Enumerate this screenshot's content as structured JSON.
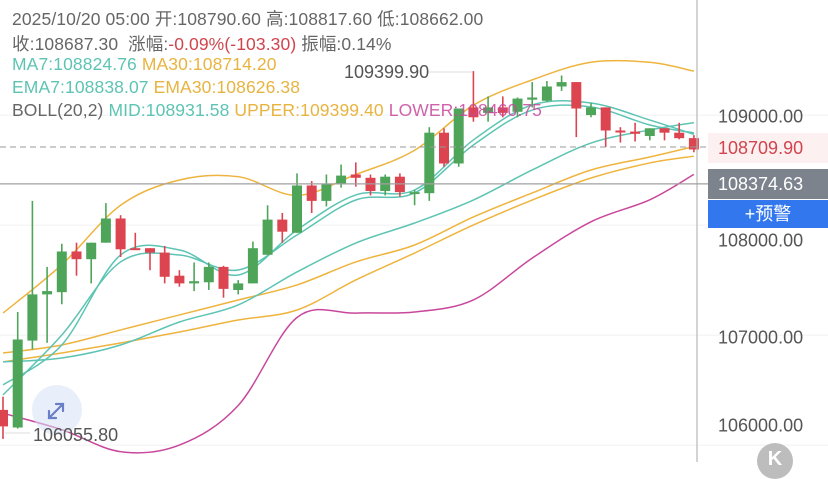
{
  "header": {
    "datetime": "2025/10/20 05:00",
    "open_label": "开:",
    "open": "108790.60",
    "high_label": "高:",
    "high": "108817.60",
    "low_label": "低:",
    "low": "108662.00",
    "close_label": "收:",
    "close": "108687.30",
    "change_label": "涨幅:",
    "change": "-0.09%(-103.30)",
    "amplitude_label": "振幅:",
    "amplitude": "0.14%",
    "ma7": "MA7:108824.76",
    "ma30": "MA30:108714.20",
    "ema7": "EMA7:108838.07",
    "ema30": "EMA30:108626.38",
    "boll": "BOLL(20,2)",
    "mid": "MID:108931.58",
    "upper": "UPPER:109399.40",
    "lower": "LOWER:108460.75"
  },
  "axis": {
    "labels": [
      "109000.00",
      "108000.00",
      "107000.00",
      "106000.00"
    ],
    "current_price": "108709.90",
    "crosshair_price": "108374.63",
    "alert_button": "+预警"
  },
  "extremes": {
    "max": "109399.90",
    "min": "106055.80"
  },
  "icons": {
    "expand": "expand-arrows-icon",
    "kline": "k-icon",
    "k_letter": "K"
  },
  "colors": {
    "up": "#4ea55a",
    "down": "#dc4450",
    "ma7": "#5dc4b4",
    "ema7": "#5dc4b4",
    "mid": "#5dc4b4",
    "ma30": "#eeb43e",
    "ema30": "#eeb43e",
    "upper": "#eeb43e",
    "lower": "#c8479c",
    "text": "#666666",
    "negative": "#d0454d",
    "alert": "#3377ee",
    "crosshair_tag": "#7c838d"
  },
  "chart_data": {
    "type": "candlestick",
    "ylim": [
      105900,
      109750
    ],
    "yticks": [
      109000,
      108000,
      107000,
      106000
    ],
    "candles_ohlc": [
      [
        106320,
        106440,
        106056,
        106170
      ],
      [
        106160,
        107210,
        106150,
        106960
      ],
      [
        106950,
        108220,
        106870,
        107370
      ],
      [
        107370,
        107620,
        106930,
        107400
      ],
      [
        107390,
        107830,
        107280,
        107760
      ],
      [
        107760,
        107840,
        107540,
        107690
      ],
      [
        107690,
        107840,
        107470,
        107840
      ],
      [
        107840,
        108200,
        107840,
        108060
      ],
      [
        108060,
        108090,
        107710,
        107780
      ],
      [
        107790,
        107930,
        107780,
        107780
      ],
      [
        107790,
        107790,
        107590,
        107750
      ],
      [
        107750,
        107810,
        107470,
        107530
      ],
      [
        107540,
        107590,
        107440,
        107470
      ],
      [
        107470,
        107660,
        107400,
        107490
      ],
      [
        107480,
        107660,
        107410,
        107620
      ],
      [
        107620,
        107630,
        107340,
        107420
      ],
      [
        107410,
        107500,
        107370,
        107470
      ],
      [
        107470,
        107850,
        107470,
        107790
      ],
      [
        107730,
        108180,
        107730,
        108050
      ],
      [
        108050,
        108110,
        107840,
        107940
      ],
      [
        107930,
        108470,
        107930,
        108360
      ],
      [
        108360,
        108400,
        108110,
        108220
      ],
      [
        108220,
        108460,
        108170,
        108370
      ],
      [
        108370,
        108550,
        108340,
        108450
      ],
      [
        108460,
        108570,
        108350,
        108430
      ],
      [
        108430,
        108460,
        108270,
        108310
      ],
      [
        108310,
        108460,
        108270,
        108440
      ],
      [
        108440,
        108470,
        108260,
        108300
      ],
      [
        108290,
        108320,
        108180,
        108300
      ],
      [
        108290,
        108890,
        108220,
        108840
      ],
      [
        108840,
        108880,
        108530,
        108560
      ],
      [
        108560,
        109060,
        108530,
        109060
      ],
      [
        109070,
        109399.9,
        108940,
        108980
      ],
      [
        109020,
        109170,
        108940,
        109070
      ],
      [
        109070,
        109170,
        108980,
        109020
      ],
      [
        109030,
        109160,
        108980,
        109150
      ],
      [
        109140,
        109300,
        109070,
        109160
      ],
      [
        109130,
        109310,
        109120,
        109260
      ],
      [
        109260,
        109360,
        109220,
        109300
      ],
      [
        109300,
        109300,
        108800,
        109060
      ],
      [
        109000,
        109110,
        108980,
        109070
      ],
      [
        109070,
        109070,
        108710,
        108860
      ],
      [
        108860,
        108890,
        108750,
        108850
      ],
      [
        108850,
        108930,
        108760,
        108830
      ],
      [
        108810,
        108880,
        108770,
        108880
      ],
      [
        108880,
        108880,
        108770,
        108840
      ],
      [
        108840,
        108930,
        108780,
        108790
      ],
      [
        108790.6,
        108817.6,
        108662.0,
        108687.3
      ]
    ],
    "line_sample_index": [
      0,
      4,
      8,
      12,
      16,
      20,
      24,
      28,
      32,
      36,
      40,
      44,
      47
    ],
    "lines": {
      "upper": [
        107200,
        107640,
        108180,
        108410,
        108440,
        108270,
        108460,
        108680,
        109090,
        109320,
        109480,
        109480,
        109399.4
      ],
      "lower": [
        106290,
        106140,
        105940,
        106000,
        106360,
        107160,
        107200,
        107210,
        107320,
        107700,
        108030,
        108230,
        108460.75
      ],
      "mid": [
        106756,
        106792,
        106910,
        107119,
        107274,
        107574,
        107837,
        108019,
        108228,
        108501,
        108746,
        108865,
        108931.58
      ],
      "ma30": [
        106837,
        106910,
        107047,
        107183,
        107319,
        107456,
        107665,
        107819,
        108074,
        108292,
        108501,
        108619,
        108714.2
      ],
      "ema30": [
        106756,
        106837,
        106928,
        107028,
        107137,
        107228,
        107501,
        107746,
        108001,
        108228,
        108428,
        108565,
        108626.38
      ],
      "ma7": [
        106547,
        106910,
        107728,
        107774,
        107546,
        107956,
        108274,
        108319,
        108774,
        109092,
        109110,
        108955,
        108824.76
      ],
      "ema7": [
        106456,
        107001,
        107665,
        107728,
        107592,
        107910,
        108228,
        108292,
        108728,
        109046,
        109074,
        108910,
        108838.07
      ]
    },
    "current_price": 108709.9,
    "crosshair_price": 108374.63
  }
}
